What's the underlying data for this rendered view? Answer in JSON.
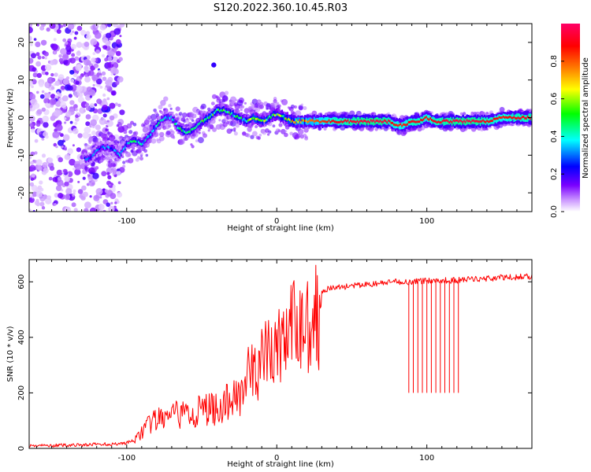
{
  "figure": {
    "title": "S120.2022.360.10.45.R03"
  },
  "chart_data": [
    {
      "type": "heatmap",
      "xlabel": "Height of straight line (km)",
      "ylabel": "Frequency (Hz)",
      "xlim": [
        -165,
        170
      ],
      "ylim": [
        -25,
        25
      ],
      "x_ticks": [
        -100,
        0,
        100
      ],
      "y_ticks": [
        -20,
        -10,
        0,
        10,
        20
      ],
      "grid": false,
      "colorbar": {
        "label": "Normalized spectral amplitude",
        "range": [
          0,
          1
        ],
        "ticks": [
          "0.0",
          "0.2",
          "0.4",
          "0.6",
          "0.8"
        ],
        "colormap": [
          "#ffffff",
          "#7a00ff",
          "#0000ff",
          "#00ffff",
          "#00ff00",
          "#ffff00",
          "#ff8000",
          "#ff0000",
          "#ff0066"
        ]
      },
      "ridge": {
        "x": [
          -125,
          -118,
          -110,
          -105,
          -100,
          -95,
          -90,
          -85,
          -80,
          -75,
          -70,
          -65,
          -60,
          -55,
          -50,
          -45,
          -40,
          -35,
          -30,
          -25,
          -20,
          -15,
          -10,
          -5,
          0,
          5,
          10,
          20,
          40,
          60,
          70,
          75,
          80,
          85,
          90,
          95,
          100,
          105,
          120,
          130,
          140,
          150,
          160,
          168
        ],
        "y": [
          -11,
          -8,
          -8,
          -10,
          -7,
          -6,
          -7,
          -5,
          -2,
          0,
          0,
          -3,
          -4,
          -3,
          -1,
          0,
          2,
          2,
          1,
          0,
          -1,
          0,
          -1,
          0,
          1,
          0,
          -1,
          -1,
          -1,
          -1,
          -1,
          -1,
          -2,
          -2,
          -1,
          -1,
          0,
          -1,
          -1,
          -1,
          -1,
          0,
          0,
          0
        ],
        "amplitude": [
          0.3,
          0.3,
          0.3,
          0.35,
          0.35,
          0.4,
          0.4,
          0.4,
          0.4,
          0.35,
          0.35,
          0.45,
          0.45,
          0.45,
          0.5,
          0.5,
          0.5,
          0.5,
          0.45,
          0.45,
          0.5,
          0.55,
          0.55,
          0.5,
          0.55,
          0.6,
          0.7,
          0.75,
          0.9,
          0.95,
          0.95,
          0.9,
          0.85,
          0.85,
          0.9,
          0.9,
          0.85,
          0.9,
          0.95,
          0.95,
          0.9,
          0.85,
          0.9,
          0.9
        ]
      }
    },
    {
      "type": "line",
      "xlabel": "Height of straight line (km)",
      "ylabel": "SNR (10 * v/v)",
      "xlim": [
        -165,
        170
      ],
      "ylim": [
        0,
        680
      ],
      "x_ticks": [
        -100,
        0,
        100
      ],
      "y_ticks": [
        0,
        200,
        400,
        600
      ],
      "grid": false,
      "color": "#ff0000",
      "x": [
        -165,
        -150,
        -140,
        -130,
        -120,
        -110,
        -100,
        -95,
        -90,
        -85,
        -80,
        -75,
        -70,
        -65,
        -60,
        -55,
        -50,
        -45,
        -40,
        -35,
        -30,
        -25,
        -20,
        -15,
        -10,
        -5,
        0,
        5,
        10,
        15,
        20,
        25,
        30,
        40,
        50,
        60,
        70,
        80,
        85,
        90,
        100,
        110,
        120,
        130,
        140,
        150,
        160,
        170
      ],
      "series": [
        {
          "values": [
            10,
            10,
            12,
            12,
            15,
            15,
            20,
            30,
            70,
            100,
            120,
            130,
            140,
            140,
            150,
            150,
            160,
            170,
            170,
            180,
            210,
            240,
            300,
            320,
            370,
            400,
            430,
            460,
            500,
            520,
            540,
            560,
            570,
            580,
            585,
            590,
            595,
            600,
            600,
            600,
            605,
            605,
            605,
            610,
            612,
            615,
            617,
            620
          ]
        }
      ],
      "dropouts": {
        "x": [
          88,
          91,
          94,
          97,
          100,
          103,
          106,
          109,
          112,
          115,
          118,
          121
        ],
        "value": 200
      }
    }
  ]
}
